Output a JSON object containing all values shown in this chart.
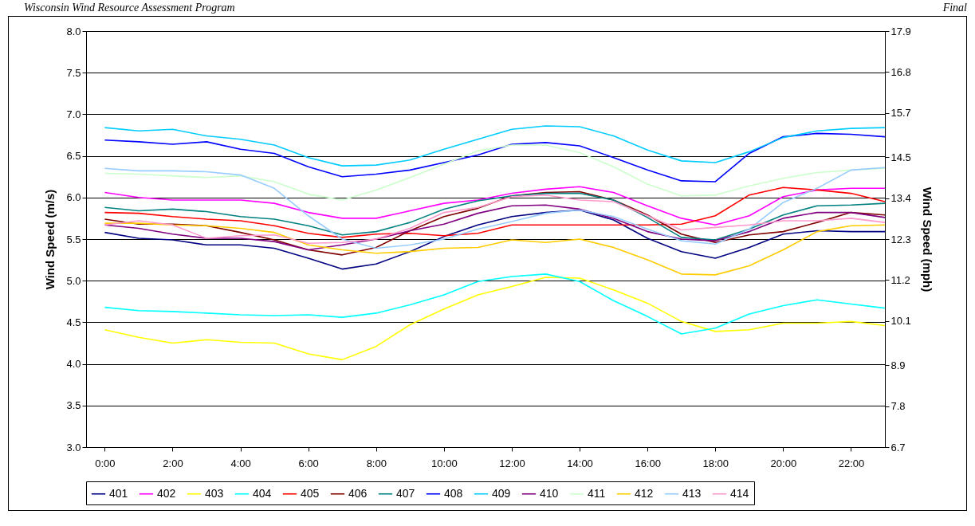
{
  "chart_data": {
    "type": "line",
    "annotations": [
      "Wisconsin Wind Resource Assessment Program",
      "Final"
    ],
    "ylabel": "Wind Speed (m/s)",
    "y2label": "Wind Speed (mph)",
    "x": [
      0,
      1,
      2,
      3,
      4,
      5,
      6,
      7,
      8,
      9,
      10,
      11,
      12,
      13,
      14,
      15,
      16,
      17,
      18,
      19,
      20,
      21,
      22,
      23
    ],
    "xlim": [
      -0.55,
      23
    ],
    "xticks": [
      {
        "value": 0,
        "label": "0:00"
      },
      {
        "value": 2,
        "label": "2:00"
      },
      {
        "value": 4,
        "label": "4:00"
      },
      {
        "value": 6,
        "label": "6:00"
      },
      {
        "value": 8,
        "label": "8:00"
      },
      {
        "value": 10,
        "label": "10:00"
      },
      {
        "value": 12,
        "label": "12:00"
      },
      {
        "value": 14,
        "label": "14:00"
      },
      {
        "value": 16,
        "label": "16:00"
      },
      {
        "value": 18,
        "label": "18:00"
      },
      {
        "value": 20,
        "label": "20:00"
      },
      {
        "value": 22,
        "label": "22:00"
      }
    ],
    "ylim": [
      3.0,
      8.0
    ],
    "yticks": [
      {
        "value": 3,
        "label": "3.0"
      },
      3.5,
      {
        "value": 4,
        "label": "4.0"
      },
      4.5,
      {
        "value": 5,
        "label": "5.0"
      },
      5.5,
      {
        "value": 6,
        "label": "6.0"
      },
      6.5,
      {
        "value": 7,
        "label": "7.0"
      },
      7.5,
      {
        "value": 8,
        "label": "8.0"
      }
    ],
    "y2lim": [
      6.7,
      17.9
    ],
    "y2ticks": [
      6.7,
      7.8,
      8.9,
      10.1,
      11.2,
      12.3,
      13.4,
      14.5,
      15.7,
      16.8,
      17.9
    ],
    "grid": "y",
    "legend": "bottom",
    "marker": "none",
    "line_style": "solid",
    "series": [
      {
        "name": "401",
        "color": "#000080",
        "values": [
          5.58,
          5.51,
          5.49,
          5.43,
          5.43,
          5.39,
          5.27,
          5.14,
          5.2,
          5.35,
          5.53,
          5.67,
          5.77,
          5.82,
          5.85,
          5.73,
          5.51,
          5.35,
          5.27,
          5.4,
          5.56,
          5.6,
          5.59,
          5.59
        ]
      },
      {
        "name": "402",
        "color": "#ff00ff",
        "values": [
          6.06,
          6.0,
          5.97,
          5.97,
          5.97,
          5.93,
          5.82,
          5.75,
          5.75,
          5.84,
          5.93,
          5.97,
          6.05,
          6.1,
          6.13,
          6.06,
          5.9,
          5.75,
          5.67,
          5.78,
          6.01,
          6.09,
          6.11,
          6.11
        ]
      },
      {
        "name": "403",
        "color": "#ffff00",
        "values": [
          4.41,
          4.32,
          4.25,
          4.29,
          4.26,
          4.25,
          4.12,
          4.05,
          4.21,
          4.47,
          4.66,
          4.83,
          4.93,
          5.04,
          5.03,
          4.89,
          4.73,
          4.51,
          4.39,
          4.41,
          4.49,
          4.49,
          4.51,
          4.46
        ]
      },
      {
        "name": "404",
        "color": "#00ffff",
        "values": [
          4.68,
          4.64,
          4.63,
          4.61,
          4.59,
          4.58,
          4.59,
          4.56,
          4.61,
          4.71,
          4.83,
          4.99,
          5.05,
          5.08,
          4.99,
          4.76,
          4.57,
          4.36,
          4.43,
          4.6,
          4.7,
          4.77,
          4.72,
          4.67
        ]
      },
      {
        "name": "405",
        "color": "#ff0000",
        "values": [
          5.82,
          5.81,
          5.77,
          5.74,
          5.72,
          5.66,
          5.57,
          5.52,
          5.56,
          5.57,
          5.54,
          5.57,
          5.67,
          5.67,
          5.67,
          5.67,
          5.67,
          5.68,
          5.78,
          6.03,
          6.12,
          6.09,
          6.05,
          5.95
        ]
      },
      {
        "name": "406",
        "color": "#800000",
        "values": [
          5.74,
          5.68,
          5.68,
          5.66,
          5.58,
          5.49,
          5.37,
          5.31,
          5.4,
          5.6,
          5.77,
          5.87,
          6.02,
          6.06,
          6.07,
          5.97,
          5.79,
          5.56,
          5.46,
          5.55,
          5.59,
          5.7,
          5.82,
          5.79
        ]
      },
      {
        "name": "407",
        "color": "#008080",
        "values": [
          5.88,
          5.84,
          5.86,
          5.83,
          5.77,
          5.74,
          5.66,
          5.55,
          5.59,
          5.7,
          5.86,
          5.96,
          6.02,
          6.05,
          6.05,
          5.97,
          5.76,
          5.52,
          5.49,
          5.62,
          5.79,
          5.9,
          5.91,
          5.93
        ]
      },
      {
        "name": "408",
        "color": "#0000ff",
        "values": [
          6.69,
          6.67,
          6.64,
          6.67,
          6.58,
          6.53,
          6.37,
          6.25,
          6.28,
          6.33,
          6.42,
          6.51,
          6.64,
          6.66,
          6.62,
          6.48,
          6.33,
          6.2,
          6.19,
          6.53,
          6.73,
          6.77,
          6.76,
          6.73
        ]
      },
      {
        "name": "409",
        "color": "#00ccff",
        "values": [
          6.84,
          6.8,
          6.82,
          6.74,
          6.7,
          6.63,
          6.48,
          6.38,
          6.39,
          6.45,
          6.58,
          6.7,
          6.82,
          6.86,
          6.85,
          6.74,
          6.57,
          6.44,
          6.42,
          6.55,
          6.72,
          6.8,
          6.83,
          6.84
        ]
      },
      {
        "name": "410",
        "color": "#800080",
        "values": [
          5.67,
          5.63,
          5.56,
          5.51,
          5.51,
          5.47,
          5.37,
          5.43,
          5.5,
          5.6,
          5.68,
          5.81,
          5.9,
          5.91,
          5.86,
          5.75,
          5.59,
          5.5,
          5.48,
          5.59,
          5.75,
          5.82,
          5.82,
          5.76
        ]
      },
      {
        "name": "411",
        "color": "#ccffcc",
        "values": [
          6.29,
          6.28,
          6.26,
          6.24,
          6.26,
          6.19,
          6.04,
          5.97,
          6.09,
          6.24,
          6.4,
          6.56,
          6.63,
          6.63,
          6.54,
          6.37,
          6.16,
          6.02,
          6.03,
          6.14,
          6.23,
          6.3,
          6.33,
          6.35
        ]
      },
      {
        "name": "412",
        "color": "#ffcc00",
        "values": [
          5.69,
          5.69,
          5.67,
          5.66,
          5.63,
          5.58,
          5.43,
          5.37,
          5.33,
          5.35,
          5.39,
          5.4,
          5.49,
          5.46,
          5.5,
          5.4,
          5.25,
          5.08,
          5.07,
          5.18,
          5.37,
          5.59,
          5.66,
          5.67
        ]
      },
      {
        "name": "413",
        "color": "#99ccff",
        "values": [
          6.35,
          6.32,
          6.32,
          6.31,
          6.27,
          6.11,
          5.78,
          5.5,
          5.39,
          5.43,
          5.5,
          5.62,
          5.71,
          5.81,
          5.85,
          5.77,
          5.62,
          5.48,
          5.44,
          5.62,
          5.94,
          6.11,
          6.33,
          6.36
        ]
      },
      {
        "name": "414",
        "color": "#ff99cc",
        "values": [
          5.67,
          5.72,
          5.67,
          5.51,
          5.54,
          5.55,
          5.45,
          5.46,
          5.5,
          5.63,
          5.82,
          5.88,
          6.01,
          6.03,
          5.97,
          5.95,
          5.78,
          5.61,
          5.64,
          5.67,
          5.72,
          5.72,
          5.75,
          5.7
        ]
      }
    ]
  }
}
